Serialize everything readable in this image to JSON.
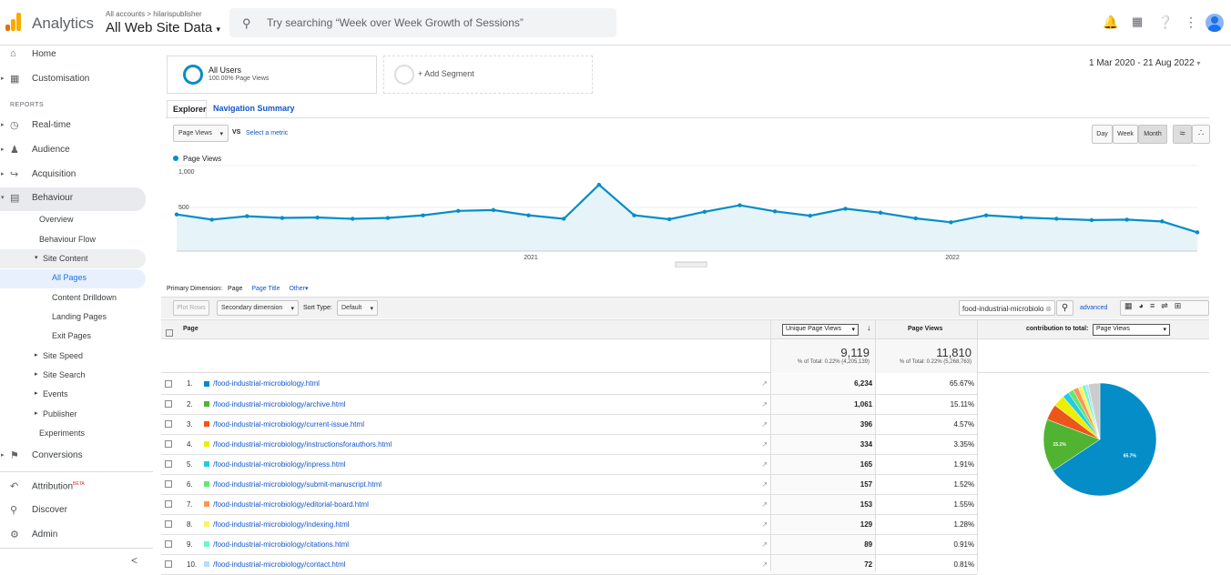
{
  "header": {
    "app_title": "Analytics",
    "account_path": "All accounts > hilarispublisher",
    "view_name": "All Web Site Data",
    "search_placeholder": "Try searching “Week over Week Growth of Sessions”",
    "icons": [
      "bell-icon",
      "apps-icon",
      "help-icon",
      "more-icon",
      "account-avatar"
    ]
  },
  "sidebar": {
    "home": "Home",
    "customisation": "Customisation",
    "reports_heading": "REPORTS",
    "realtime": "Real-time",
    "audience": "Audience",
    "acquisition": "Acquisition",
    "behaviour": "Behaviour",
    "overview": "Overview",
    "behaviour_flow": "Behaviour Flow",
    "site_content": "Site Content",
    "all_pages": "All Pages",
    "content_drilldown": "Content Drilldown",
    "landing_pages": "Landing Pages",
    "exit_pages": "Exit Pages",
    "site_speed": "Site Speed",
    "site_search": "Site Search",
    "events": "Events",
    "publisher": "Publisher",
    "experiments": "Experiments",
    "conversions": "Conversions",
    "attribution": "Attribution",
    "attribution_badge": "BETA",
    "discover": "Discover",
    "admin": "Admin",
    "collapse": "<"
  },
  "segments": {
    "all_users": "All Users",
    "all_users_sub": "100.00% Page Views",
    "add_segment": "+ Add Segment"
  },
  "date_range": "1 Mar 2020 - 21 Aug 2022",
  "tabs": {
    "explorer": "Explorer",
    "nav_summary": "Navigation Summary"
  },
  "chart_controls": {
    "metric": "Page Views",
    "vs": "VS",
    "select_metric": "Select a metric",
    "day": "Day",
    "week": "Week",
    "month": "Month"
  },
  "chart_data": {
    "type": "line",
    "legend": "Page Views",
    "y_ticks": [
      "1,000",
      "500"
    ],
    "x_ticks": [
      "2021",
      "2022"
    ],
    "ylim": [
      0,
      1000
    ],
    "values": [
      420,
      360,
      400,
      380,
      385,
      370,
      380,
      410,
      460,
      470,
      410,
      370,
      760,
      410,
      365,
      450,
      525,
      455,
      405,
      485,
      440,
      375,
      330,
      410,
      385,
      370,
      355,
      360,
      340,
      215
    ]
  },
  "table_controls": {
    "primary_dimension_label": "Primary Dimension:",
    "dim_page": "Page",
    "dim_page_title": "Page Title",
    "dim_other": "Other",
    "plot_rows": "Plot Rows",
    "secondary_dimension": "Secondary dimension",
    "sort_type_label": "Sort Type:",
    "sort_default": "Default",
    "filter_value": "food-industrial-microbiolo",
    "advanced": "advanced"
  },
  "table": {
    "col_page": "Page",
    "col_unique": "Unique Page Views",
    "col_pageviews": "Page Views",
    "col_contribution": "contribution to total:",
    "contribution_metric": "Page Views",
    "total_unique": "9,119",
    "total_unique_sub": "% of Total: 0.22% (4,205,139)",
    "total_pv": "11,810",
    "total_pv_sub": "% of Total: 0.22% (5,268,763)",
    "rows": [
      {
        "n": "1.",
        "page": "/food-industrial-microbiology.html",
        "unique": "6,234",
        "pct": "65.67%",
        "color": "#058dc7"
      },
      {
        "n": "2.",
        "page": "/food-industrial-microbiology/archive.html",
        "unique": "1,061",
        "pct": "15.11%",
        "color": "#50b432"
      },
      {
        "n": "3.",
        "page": "/food-industrial-microbiology/current-issue.html",
        "unique": "396",
        "pct": "4.57%",
        "color": "#ed561b"
      },
      {
        "n": "4.",
        "page": "/food-industrial-microbiology/instructionsforauthors.html",
        "unique": "334",
        "pct": "3.35%",
        "color": "#edef00"
      },
      {
        "n": "5.",
        "page": "/food-industrial-microbiology/inpress.html",
        "unique": "165",
        "pct": "1.91%",
        "color": "#24cbe5"
      },
      {
        "n": "6.",
        "page": "/food-industrial-microbiology/submit-manuscript.html",
        "unique": "157",
        "pct": "1.52%",
        "color": "#64e572"
      },
      {
        "n": "7.",
        "page": "/food-industrial-microbiology/editorial-board.html",
        "unique": "153",
        "pct": "1.55%",
        "color": "#ff9655"
      },
      {
        "n": "8.",
        "page": "/food-industrial-microbiology/indexing.html",
        "unique": "129",
        "pct": "1.28%",
        "color": "#fff263"
      },
      {
        "n": "9.",
        "page": "/food-industrial-microbiology/citations.html",
        "unique": "89",
        "pct": "0.91%",
        "color": "#6af9c4"
      },
      {
        "n": "10.",
        "page": "/food-industrial-microbiology/contact.html",
        "unique": "72",
        "pct": "0.81%",
        "color": "#b2deff"
      }
    ]
  },
  "pie": {
    "label_big": "65.7%",
    "label_second": "15.1%"
  }
}
